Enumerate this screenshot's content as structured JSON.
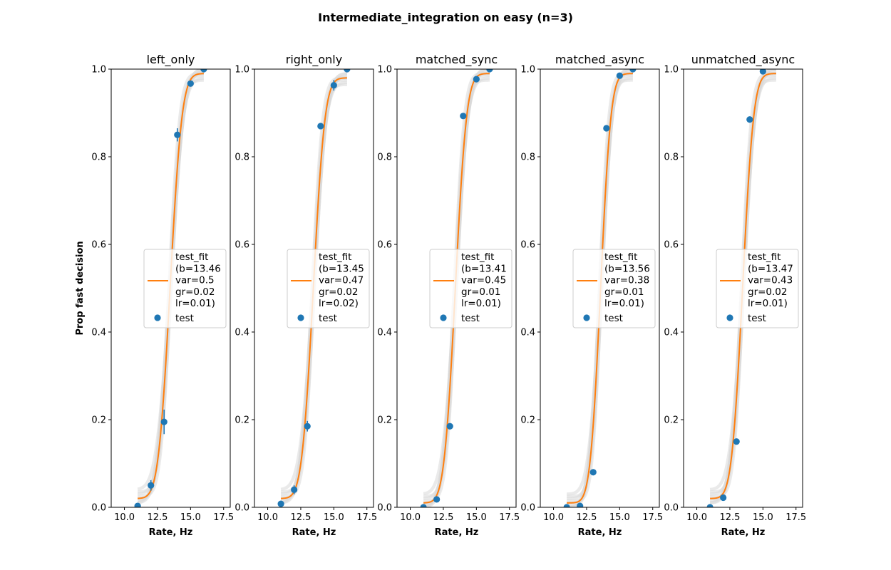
{
  "figure": {
    "title": "Intermediate_integration on easy (n=3)"
  },
  "colors": {
    "fit": "#ff7f0e",
    "points": "#1f77b4",
    "band": "#d9d9d9",
    "axis": "#000000"
  },
  "chart_data": [
    {
      "type": "scatter",
      "title": "left_only",
      "xlabel": "Rate, Hz",
      "ylabel": "Prop fast decision",
      "xlim": [
        9.0,
        18.0
      ],
      "ylim": [
        0.0,
        1.0
      ],
      "xticks": [
        "10.0",
        "12.5",
        "15.0",
        "17.5"
      ],
      "yticks": [
        "0.0",
        "0.2",
        "0.4",
        "0.6",
        "0.8",
        "1.0"
      ],
      "fit": {
        "label": "test_fit\n(b=13.46\nvar=0.5\ngr=0.02\nlr=0.01)",
        "b": 13.46,
        "var": 0.5,
        "gr": 0.02,
        "lr": 0.01,
        "x_range": [
          11.0,
          16.0
        ]
      },
      "points": {
        "label": "test",
        "x": [
          11,
          12,
          13,
          14,
          15,
          16
        ],
        "y": [
          0.003,
          0.05,
          0.195,
          0.85,
          0.967,
          1.0
        ],
        "err": [
          0.0,
          0.012,
          0.028,
          0.015,
          0.006,
          0.0
        ]
      }
    },
    {
      "type": "scatter",
      "title": "right_only",
      "xlabel": "Rate, Hz",
      "ylabel": "",
      "xlim": [
        9.0,
        18.0
      ],
      "ylim": [
        0.0,
        1.0
      ],
      "xticks": [
        "10.0",
        "12.5",
        "15.0",
        "17.5"
      ],
      "yticks": [
        "0.0",
        "0.2",
        "0.4",
        "0.6",
        "0.8",
        "1.0"
      ],
      "fit": {
        "label": "test_fit\n(b=13.45\nvar=0.47\ngr=0.02\nlr=0.02)",
        "b": 13.45,
        "var": 0.47,
        "gr": 0.02,
        "lr": 0.02,
        "x_range": [
          11.0,
          16.0
        ]
      },
      "points": {
        "label": "test",
        "x": [
          11,
          12,
          13,
          14,
          15,
          16
        ],
        "y": [
          0.008,
          0.04,
          0.185,
          0.87,
          0.963,
          1.0
        ],
        "err": [
          0.0,
          0.01,
          0.012,
          0.005,
          0.012,
          0.0
        ]
      }
    },
    {
      "type": "scatter",
      "title": "matched_sync",
      "xlabel": "Rate, Hz",
      "ylabel": "",
      "xlim": [
        9.0,
        18.0
      ],
      "ylim": [
        0.0,
        1.0
      ],
      "xticks": [
        "10.0",
        "12.5",
        "15.0",
        "17.5"
      ],
      "yticks": [
        "0.0",
        "0.2",
        "0.4",
        "0.6",
        "0.8",
        "1.0"
      ],
      "fit": {
        "label": "test_fit\n(b=13.41\nvar=0.45\ngr=0.01\nlr=0.01)",
        "b": 13.41,
        "var": 0.45,
        "gr": 0.01,
        "lr": 0.01,
        "x_range": [
          11.0,
          16.0
        ]
      },
      "points": {
        "label": "test",
        "x": [
          11,
          12,
          13,
          14,
          15,
          16
        ],
        "y": [
          0.0,
          0.018,
          0.185,
          0.893,
          0.977,
          1.0
        ],
        "err": [
          0.0,
          0.0,
          0.0,
          0.0,
          0.0,
          0.0
        ]
      }
    },
    {
      "type": "scatter",
      "title": "matched_async",
      "xlabel": "Rate, Hz",
      "ylabel": "",
      "xlim": [
        9.0,
        18.0
      ],
      "ylim": [
        0.0,
        1.0
      ],
      "xticks": [
        "10.0",
        "12.5",
        "15.0",
        "17.5"
      ],
      "yticks": [
        "0.0",
        "0.2",
        "0.4",
        "0.6",
        "0.8",
        "1.0"
      ],
      "fit": {
        "label": "test_fit\n(b=13.56\nvar=0.38\ngr=0.01\nlr=0.01)",
        "b": 13.56,
        "var": 0.38,
        "gr": 0.01,
        "lr": 0.01,
        "x_range": [
          11.0,
          16.0
        ]
      },
      "points": {
        "label": "test",
        "x": [
          11,
          12,
          13,
          14,
          15,
          16
        ],
        "y": [
          0.0,
          0.003,
          0.08,
          0.865,
          0.985,
          1.0
        ],
        "err": [
          0.0,
          0.0,
          0.0,
          0.0,
          0.0,
          0.0
        ]
      }
    },
    {
      "type": "scatter",
      "title": "unmatched_async",
      "xlabel": "Rate, Hz",
      "ylabel": "",
      "xlim": [
        9.0,
        18.0
      ],
      "ylim": [
        0.0,
        1.0
      ],
      "xticks": [
        "10.0",
        "12.5",
        "15.0",
        "17.5"
      ],
      "yticks": [
        "0.0",
        "0.2",
        "0.4",
        "0.6",
        "0.8",
        "1.0"
      ],
      "fit": {
        "label": "test_fit\n(b=13.47\nvar=0.43\ngr=0.02\nlr=0.01)",
        "b": 13.47,
        "var": 0.43,
        "gr": 0.02,
        "lr": 0.01,
        "x_range": [
          11.0,
          16.0
        ]
      },
      "points": {
        "label": "test",
        "x": [
          11,
          12,
          13,
          14,
          15
        ],
        "y": [
          0.0,
          0.022,
          0.15,
          0.885,
          0.995
        ],
        "err": [
          0.0,
          0.0,
          0.0,
          0.0,
          0.0
        ]
      }
    }
  ]
}
